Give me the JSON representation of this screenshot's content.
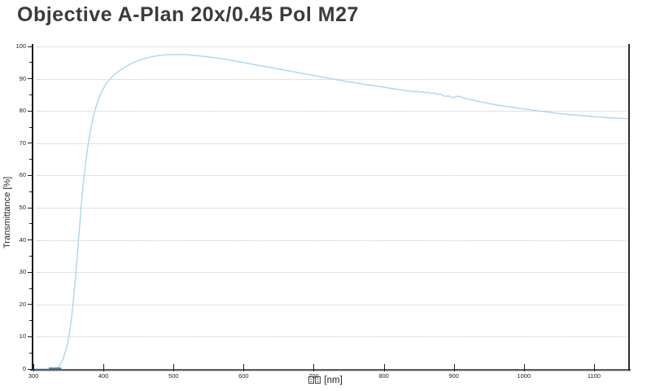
{
  "header": {
    "title": "Objective A-Plan 20x/0.45 Pol M27"
  },
  "colors": {
    "title_text": "#3b3b3b",
    "curve_line": "#a9d7f2",
    "baseline_overlap": "#4e7e96",
    "gridline": "#c5c5c5",
    "axis": "#1c1c1c"
  },
  "chart_data": {
    "type": "line",
    "title": "Objective A-Plan 20x/0.45 Pol M27",
    "ylabel": "Transmittance [%]",
    "xlabel_unit": "[nm]",
    "xlabel_missing_glyph_count": 2,
    "xlim": [
      300,
      1150
    ],
    "ylim": [
      0,
      100
    ],
    "xticks": [
      300,
      400,
      500,
      600,
      700,
      800,
      900,
      1000,
      1100
    ],
    "yticks": [
      0,
      10,
      20,
      30,
      40,
      50,
      60,
      70,
      80,
      90,
      100
    ],
    "y_minor_step": 5,
    "grid": "horizontal dotted, no vertical gridlines",
    "legend": "none",
    "baseline_overlap_nm": [
      322,
      340
    ],
    "series": [
      {
        "name": "Transmittance",
        "points": [
          [
            300,
            0
          ],
          [
            305,
            0
          ],
          [
            310,
            0
          ],
          [
            315,
            0
          ],
          [
            320,
            0
          ],
          [
            325,
            0
          ],
          [
            330,
            0
          ],
          [
            334,
            0.3
          ],
          [
            337,
            1
          ],
          [
            340,
            2
          ],
          [
            343,
            3.5
          ],
          [
            346,
            5.5
          ],
          [
            349,
            8
          ],
          [
            351,
            10.5
          ],
          [
            353,
            13.5
          ],
          [
            355,
            17
          ],
          [
            357,
            21
          ],
          [
            359,
            25.5
          ],
          [
            361,
            30.5
          ],
          [
            363,
            36
          ],
          [
            365,
            41.5
          ],
          [
            367,
            47
          ],
          [
            369,
            52.5
          ],
          [
            371,
            57
          ],
          [
            373,
            61
          ],
          [
            375,
            64.5
          ],
          [
            377,
            67.8
          ],
          [
            379,
            70.8
          ],
          [
            381,
            73.4
          ],
          [
            383,
            75.7
          ],
          [
            385,
            77.7
          ],
          [
            387,
            79.4
          ],
          [
            389,
            81
          ],
          [
            391,
            82.4
          ],
          [
            393,
            83.6
          ],
          [
            395,
            84.7
          ],
          [
            397,
            85.7
          ],
          [
            400,
            87
          ],
          [
            403,
            88.1
          ],
          [
            406,
            89
          ],
          [
            409,
            89.8
          ],
          [
            412,
            90.5
          ],
          [
            415,
            91.1
          ],
          [
            418,
            91.7
          ],
          [
            421,
            92.2
          ],
          [
            425,
            92.8
          ],
          [
            429,
            93.4
          ],
          [
            433,
            93.9
          ],
          [
            437,
            94.4
          ],
          [
            441,
            94.8
          ],
          [
            445,
            95.2
          ],
          [
            450,
            95.6
          ],
          [
            455,
            96
          ],
          [
            460,
            96.3
          ],
          [
            465,
            96.6
          ],
          [
            470,
            96.85
          ],
          [
            475,
            97.05
          ],
          [
            480,
            97.2
          ],
          [
            485,
            97.3
          ],
          [
            490,
            97.4
          ],
          [
            495,
            97.45
          ],
          [
            500,
            97.5
          ],
          [
            505,
            97.5
          ],
          [
            510,
            97.5
          ],
          [
            515,
            97.45
          ],
          [
            520,
            97.4
          ],
          [
            525,
            97.3
          ],
          [
            530,
            97.2
          ],
          [
            535,
            97.1
          ],
          [
            540,
            97
          ],
          [
            545,
            96.9
          ],
          [
            550,
            96.75
          ],
          [
            555,
            96.6
          ],
          [
            560,
            96.45
          ],
          [
            565,
            96.3
          ],
          [
            570,
            96.15
          ],
          [
            575,
            96
          ],
          [
            580,
            95.8
          ],
          [
            585,
            95.6
          ],
          [
            590,
            95.4
          ],
          [
            595,
            95.2
          ],
          [
            600,
            95
          ],
          [
            610,
            94.6
          ],
          [
            620,
            94.2
          ],
          [
            630,
            93.8
          ],
          [
            640,
            93.4
          ],
          [
            650,
            93
          ],
          [
            660,
            92.6
          ],
          [
            670,
            92.2
          ],
          [
            680,
            91.8
          ],
          [
            690,
            91.4
          ],
          [
            700,
            91
          ],
          [
            710,
            90.6
          ],
          [
            720,
            90.2
          ],
          [
            730,
            89.8
          ],
          [
            740,
            89.4
          ],
          [
            750,
            89
          ],
          [
            760,
            88.7
          ],
          [
            770,
            88.3
          ],
          [
            780,
            88
          ],
          [
            790,
            87.7
          ],
          [
            800,
            87.4
          ],
          [
            810,
            87
          ],
          [
            820,
            86.7
          ],
          [
            830,
            86.4
          ],
          [
            838,
            86.1
          ],
          [
            844,
            85.9
          ],
          [
            848,
            86.1
          ],
          [
            852,
            85.8
          ],
          [
            856,
            86
          ],
          [
            860,
            85.6
          ],
          [
            864,
            85.8
          ],
          [
            868,
            85.4
          ],
          [
            872,
            85.6
          ],
          [
            876,
            85.1
          ],
          [
            880,
            85.3
          ],
          [
            884,
            84.8
          ],
          [
            888,
            84.5
          ],
          [
            892,
            84.7
          ],
          [
            896,
            84.3
          ],
          [
            900,
            84.2
          ],
          [
            904,
            84.5
          ],
          [
            908,
            84.6
          ],
          [
            912,
            84.2
          ],
          [
            916,
            83.9
          ],
          [
            920,
            83.7
          ],
          [
            926,
            83.4
          ],
          [
            932,
            83.1
          ],
          [
            938,
            82.8
          ],
          [
            944,
            82.6
          ],
          [
            950,
            82.3
          ],
          [
            958,
            82
          ],
          [
            966,
            81.7
          ],
          [
            974,
            81.4
          ],
          [
            982,
            81.2
          ],
          [
            990,
            80.9
          ],
          [
            1000,
            80.6
          ],
          [
            1010,
            80.3
          ],
          [
            1020,
            80
          ],
          [
            1030,
            79.8
          ],
          [
            1040,
            79.5
          ],
          [
            1050,
            79.2
          ],
          [
            1060,
            79
          ],
          [
            1070,
            78.8
          ],
          [
            1080,
            78.6
          ],
          [
            1090,
            78.4
          ],
          [
            1100,
            78.2
          ],
          [
            1110,
            78.1
          ],
          [
            1120,
            77.9
          ],
          [
            1130,
            77.8
          ],
          [
            1140,
            77.7
          ],
          [
            1150,
            77.6
          ]
        ]
      }
    ]
  }
}
